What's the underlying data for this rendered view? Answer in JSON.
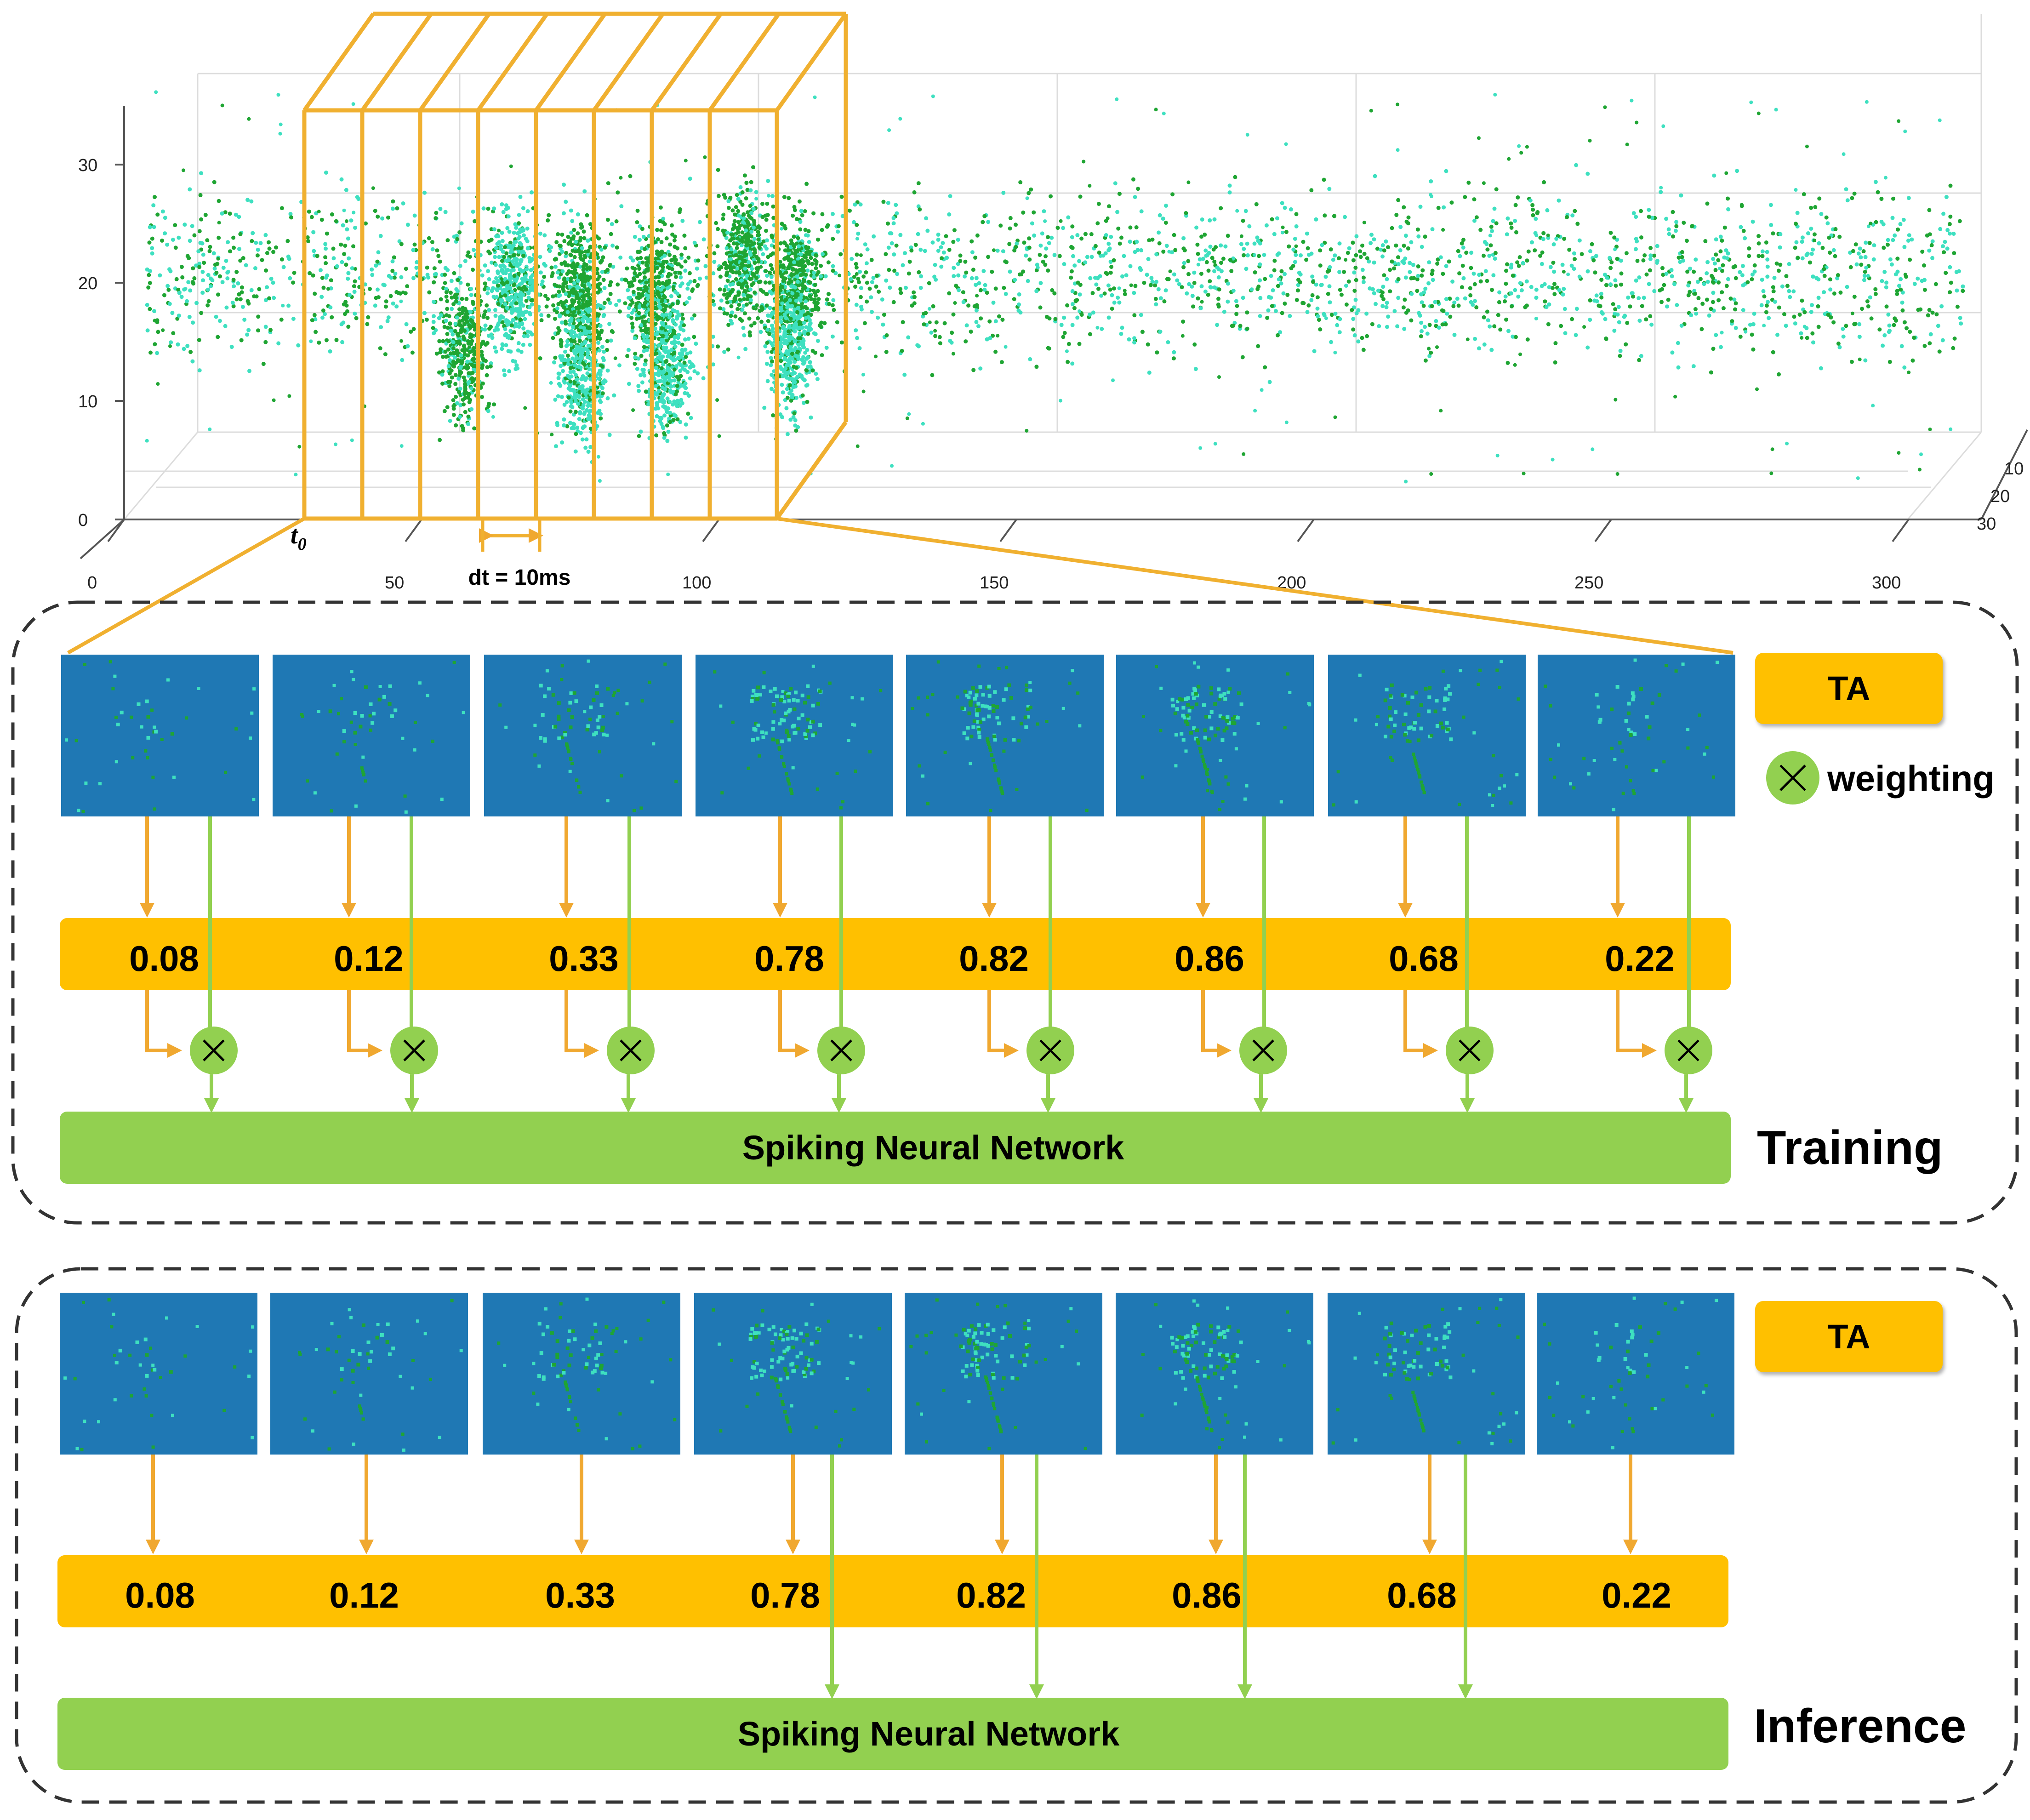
{
  "top_plot": {
    "z_ticks": [
      "30",
      "20",
      "10",
      "0"
    ],
    "x_ticks": [
      "0",
      "50",
      "100",
      "150",
      "200",
      "250",
      "300"
    ],
    "y_ticks": [
      "10",
      "20",
      "30"
    ],
    "t0_label": "t",
    "t0_subscript": "0",
    "dt_label": "dt = 10ms",
    "colors": {
      "event_dark": "#1fa533",
      "event_light": "#3ee0c0",
      "window": "#f0b030",
      "grid": "#d8d8d8"
    }
  },
  "training": {
    "weights": [
      "0.08",
      "0.12",
      "0.33",
      "0.78",
      "0.82",
      "0.86",
      "0.68",
      "0.22"
    ],
    "snn_label": "Spiking Neural Network",
    "phase_label": "Training",
    "ta_label": "TA",
    "legend_icon": "multiply-icon",
    "legend_text": "weighting"
  },
  "inference": {
    "weights": [
      "0.08",
      "0.12",
      "0.33",
      "0.78",
      "0.82",
      "0.86",
      "0.68",
      "0.22"
    ],
    "snn_label": "Spiking Neural Network",
    "phase_label": "Inference",
    "ta_label": "TA"
  },
  "colors": {
    "frame_bg": "#1f78b4",
    "weight_bar": "#ffc000",
    "snn_bar": "#92d050",
    "arrow_orange": "#f0a830",
    "arrow_green": "#92d050",
    "dashed_border": "#333333"
  }
}
